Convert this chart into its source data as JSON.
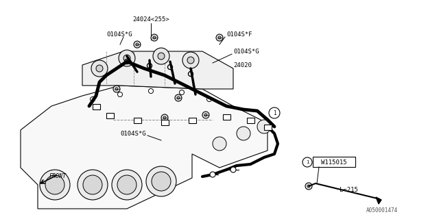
{
  "bg_color": "#ffffff",
  "line_color": "#000000",
  "gray_color": "#888888",
  "title_bottom": "A050001474",
  "label_part1": "24024<255>",
  "label_part2": "24020",
  "label_0104SG_1": "0104S*G",
  "label_0104SF": "0104S*F",
  "label_0104SG_2": "0104S*G",
  "label_0104SG_3": "0104S*G",
  "label_front": "FRONT",
  "label_w115015": "W115015",
  "label_l215": "L=215",
  "circle1_label": "1"
}
